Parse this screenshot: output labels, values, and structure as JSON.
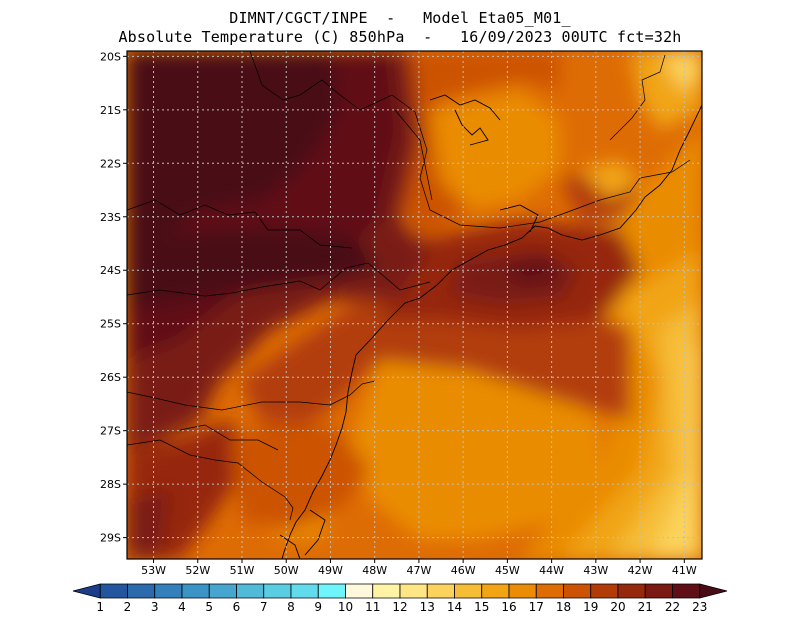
{
  "header": {
    "line1": "DIMNT/CGCT/INPE  -   Model Eta05_M01_",
    "line2": "Absolute Temperature (C) 850hPa  -   16/09/2023 00UTC fct=32h"
  },
  "map": {
    "lon_range": [
      -53.6,
      -40.6
    ],
    "lat_range": [
      -29.4,
      -19.9
    ],
    "lat_ticks": [
      {
        "value": -20,
        "label": "20S"
      },
      {
        "value": -21,
        "label": "21S"
      },
      {
        "value": -22,
        "label": "22S"
      },
      {
        "value": -23,
        "label": "23S"
      },
      {
        "value": -24,
        "label": "24S"
      },
      {
        "value": -25,
        "label": "25S"
      },
      {
        "value": -26,
        "label": "26S"
      },
      {
        "value": -27,
        "label": "27S"
      },
      {
        "value": -28,
        "label": "28S"
      },
      {
        "value": -29,
        "label": "29S"
      }
    ],
    "lon_ticks": [
      {
        "value": -53,
        "label": "53W"
      },
      {
        "value": -52,
        "label": "52W"
      },
      {
        "value": -51,
        "label": "51W"
      },
      {
        "value": -50,
        "label": "50W"
      },
      {
        "value": -49,
        "label": "49W"
      },
      {
        "value": -48,
        "label": "48W"
      },
      {
        "value": -47,
        "label": "47W"
      },
      {
        "value": -46,
        "label": "46W"
      },
      {
        "value": -45,
        "label": "45W"
      },
      {
        "value": -44,
        "label": "44W"
      },
      {
        "value": -43,
        "label": "43W"
      },
      {
        "value": -42,
        "label": "42W"
      },
      {
        "value": -41,
        "label": "41W"
      }
    ],
    "grid_lines": "dotted"
  },
  "colorbar": {
    "labels": [
      "1",
      "2",
      "3",
      "4",
      "5",
      "6",
      "7",
      "8",
      "9",
      "10",
      "11",
      "12",
      "13",
      "14",
      "15",
      "16",
      "17",
      "18",
      "19",
      "20",
      "21",
      "22",
      "23"
    ],
    "colors": [
      "#1c3d8c",
      "#2456a0",
      "#2c6aae",
      "#3480bc",
      "#3c93c6",
      "#46a6cf",
      "#50bad8",
      "#5acde2",
      "#62dced",
      "#6ef4fa",
      "#fff8dc",
      "#fff3a6",
      "#fee686",
      "#fbd35c",
      "#f6bd37",
      "#f1a515",
      "#ea8c06",
      "#de6c04",
      "#cc5206",
      "#b23c08",
      "#96280c",
      "#7a1a12",
      "#600f16",
      "#4a0c14"
    ]
  }
}
